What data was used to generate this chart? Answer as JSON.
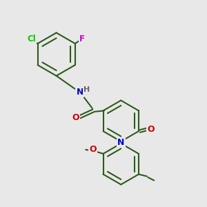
{
  "background_color": "#e8e8e8",
  "bond_color": "#2d5a1b",
  "atom_colors": {
    "Cl": "#00cc00",
    "F": "#cc00cc",
    "N": "#0000cc",
    "O": "#cc0000",
    "H": "#666666",
    "C": "#000000"
  },
  "figsize": [
    3.0,
    3.0
  ],
  "dpi": 100
}
